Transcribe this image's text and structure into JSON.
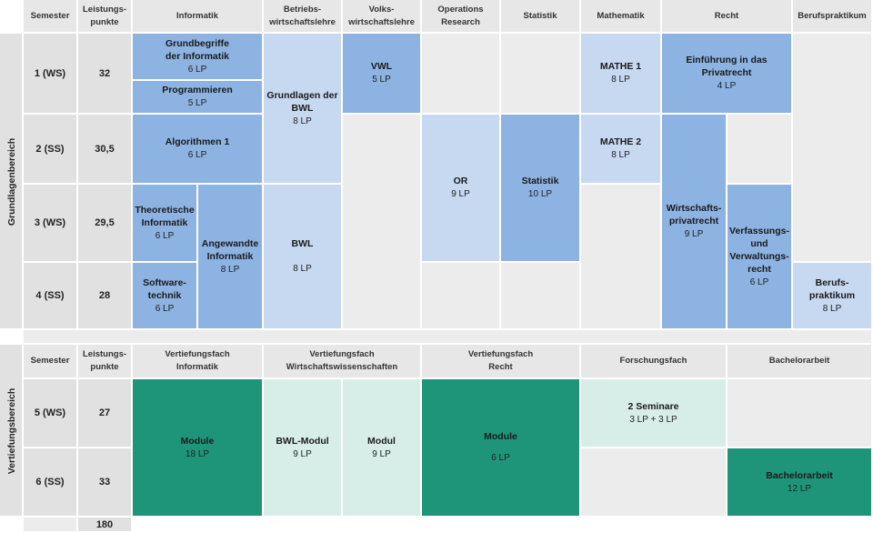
{
  "colors": {
    "header_grey": "#e7e7e7",
    "semester_grey": "#e1e1e1",
    "empty_grey": "#ececec",
    "blue_dark": "#8db3e2",
    "blue_light": "#c6d9f1",
    "teal_dark": "#1e9579",
    "teal_light": "#d7eee8"
  },
  "sections": {
    "grundlagen": "Grundlagenbereich",
    "vertiefung": "Vertiefungsbereich"
  },
  "header1": {
    "semester": "Semester",
    "lp": "Leistungs-\npunkte",
    "informatik": "Informatik",
    "bwl": "Betriebs-\nwirtschaftslehre",
    "vwl": "Volks-\nwirtschaftslehre",
    "or": "Operations\nResearch",
    "statistik": "Statistik",
    "mathematik": "Mathematik",
    "recht": "Recht",
    "praktikum": "Berufspraktikum"
  },
  "rows1": [
    {
      "semester": "1 (WS)",
      "lp": "32"
    },
    {
      "semester": "2 (SS)",
      "lp": "30,5"
    },
    {
      "semester": "3 (WS)",
      "lp": "29,5"
    },
    {
      "semester": "4 (SS)",
      "lp": "28"
    }
  ],
  "modules": {
    "grundbegriffe": {
      "name": "Grundbegriffe\nder Informatik",
      "lp": "6 LP"
    },
    "programmieren": {
      "name": "Programmieren",
      "lp": "5 LP"
    },
    "algorithmen": {
      "name": "Algorithmen 1",
      "lp": "6 LP"
    },
    "theoretische": {
      "name": "Theoretische\nInformatik",
      "lp": "6 LP"
    },
    "angewandte": {
      "name": "Angewandte\nInformatik",
      "lp": "8 LP"
    },
    "software": {
      "name": "Software-\ntechnik",
      "lp": "6 LP"
    },
    "grundlagen_bwl": {
      "name": "Grundlagen der\nBWL",
      "lp": "8 LP"
    },
    "bwl": {
      "name": "BWL",
      "lp": "8 LP"
    },
    "vwl": {
      "name": "VWL",
      "lp": "5 LP"
    },
    "or": {
      "name": "OR",
      "lp": "9 LP"
    },
    "statistik": {
      "name": "Statistik",
      "lp": "10 LP"
    },
    "mathe1": {
      "name": "MATHE 1",
      "lp": "8 LP"
    },
    "mathe2": {
      "name": "MATHE 2",
      "lp": "8 LP"
    },
    "privatrecht": {
      "name": "Einführung in das Privatrecht",
      "lp": "4 LP"
    },
    "wirtschaftsprivatrecht": {
      "name": "Wirtschafts-\nprivatrecht",
      "lp": "9 LP"
    },
    "verfassungsrecht": {
      "name": "Verfassungs-\nund\nVerwaltungs-\nrecht",
      "lp": "6 LP"
    },
    "berufspraktikum": {
      "name": "Berufs-\npraktikum",
      "lp": "8 LP"
    }
  },
  "header2": {
    "semester": "Semester",
    "lp": "Leistungs-\npunkte",
    "vf_informatik": "Vertiefungsfach\nInformatik",
    "vf_wiwi": "Vertiefungsfach\nWirtschaftswissenschaften",
    "vf_recht": "Vertiefungsfach\nRecht",
    "forschungsfach": "Forschungsfach",
    "bachelorarbeit": "Bachelorarbeit"
  },
  "rows2": [
    {
      "semester": "5 (WS)",
      "lp": "27"
    },
    {
      "semester": "6 (SS)",
      "lp": "33"
    }
  ],
  "modules2": {
    "module_inf": {
      "name": "Module",
      "lp": "18 LP"
    },
    "bwl_modul": {
      "name": "BWL-Modul",
      "lp": "9 LP"
    },
    "modul": {
      "name": "Modul",
      "lp": "9 LP"
    },
    "module_recht": {
      "name": "Module",
      "lp": "6 LP"
    },
    "seminare": {
      "name": "2 Seminare",
      "lp": "3 LP + 3 LP"
    },
    "bachelorarbeit": {
      "name": "Bachelorarbeit",
      "lp": "12 LP"
    }
  },
  "total": "180"
}
